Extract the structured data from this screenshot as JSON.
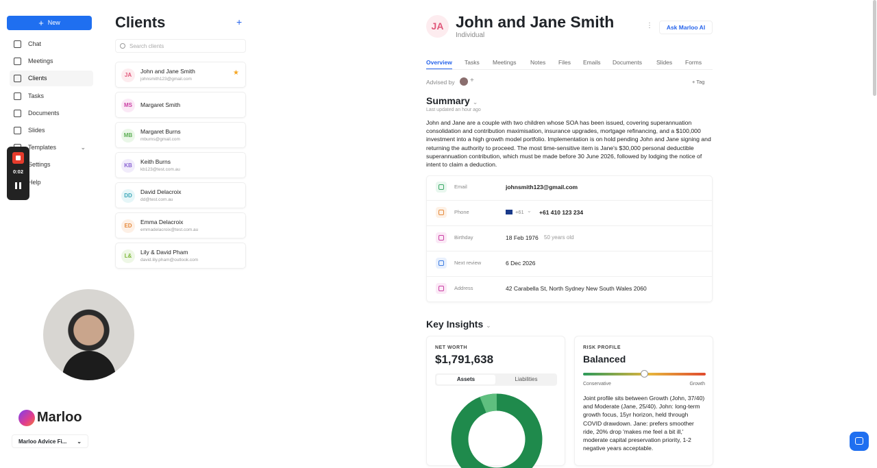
{
  "sidebar": {
    "new_button": "New",
    "nav": [
      "Chat",
      "Meetings",
      "Clients",
      "Tasks",
      "Documents",
      "Slides",
      "Templates",
      "Settings",
      "Help"
    ],
    "brand": "Marloo",
    "workspace": "Marloo Advice Fi..."
  },
  "recorder": {
    "time": "0:02"
  },
  "clients": {
    "title": "Clients",
    "search_placeholder": "Search clients",
    "items": [
      {
        "initials": "JA",
        "name": "John and Jane Smith",
        "email": "johnsmith123@gmail.com"
      },
      {
        "initials": "MS",
        "name": "Margaret Smith"
      },
      {
        "initials": "MB",
        "name": "Margaret Burns",
        "email": "mburns@gmail.com"
      },
      {
        "initials": "KB",
        "name": "Keith Burns",
        "email": "kb123@test.com.au"
      },
      {
        "initials": "DD",
        "name": "David Delacroix",
        "email": "dd@test.com.au"
      },
      {
        "initials": "ED",
        "name": "Emma Delacroix",
        "email": "emmadelacroix@test.com.au"
      },
      {
        "initials": "L&",
        "name": "Lily & David Pham",
        "email": "david.lily.pham@outlook.com"
      }
    ]
  },
  "client": {
    "initials": "JA",
    "name": "John and Jane Smith",
    "type": "Individual",
    "ask_button": "Ask Marloo AI",
    "tabs": [
      "Overview",
      "Tasks",
      "Meetings",
      "Notes",
      "Files",
      "Emails",
      "Documents",
      "Slides",
      "Forms"
    ],
    "advised_by": "Advised by",
    "tag_button": "Tag",
    "summary": {
      "title": "Summary",
      "updated": "Last updated an hour ago",
      "text": "John and Jane are a couple with two children whose SOA has been issued, covering superannuation consolidation and contribution maximisation, insurance upgrades, mortgage refinancing, and a $100,000 investment into a high growth model portfolio. Implementation is on hold pending John and Jane signing and returning the authority to proceed. The most time-sensitive item is Jane's $30,000 personal deductible superannuation contribution, which must be made before 30 June 2026, followed by lodging the notice of intent to claim a deduction."
    },
    "contact": [
      {
        "label": "Email",
        "value": "johnsmith123@gmail.com"
      },
      {
        "label": "Phone",
        "prefix": "+61",
        "value": "+61 410 123 234"
      },
      {
        "label": "Birthday",
        "value": "18 Feb 1976",
        "extra": "50 years old"
      },
      {
        "label": "Next review",
        "value": "6 Dec 2026"
      },
      {
        "label": "Address",
        "value": "42 Carabella St, North Sydney New South Wales 2060"
      }
    ],
    "insights": {
      "title": "Key Insights",
      "net_worth": {
        "label": "NET WORTH",
        "value": "$1,791,638",
        "toggle": [
          "Assets",
          "Liabilities"
        ]
      },
      "risk": {
        "label": "RISK PROFILE",
        "value": "Balanced",
        "low": "Conservative",
        "high": "Growth",
        "text": "Joint profile sits between Growth (John, 37/40) and Moderate (Jane, 25/40). John: long-term growth focus, 15yr horizon, held through COVID drawdown. Jane: prefers smoother ride, 20% drop 'makes me feel a bit ill,' moderate capital preservation priority, 1-2 negative years acceptable."
      }
    }
  }
}
